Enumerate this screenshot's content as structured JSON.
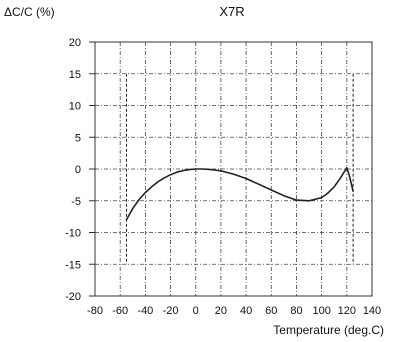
{
  "chart_data": {
    "type": "line",
    "title": "X7R",
    "xlabel": "Temperature (deg.C)",
    "ylabel": "ΔC/C (%)",
    "xlim": [
      -80,
      140
    ],
    "ylim": [
      -20,
      20
    ],
    "x_ticks": [
      -80,
      -60,
      -40,
      -20,
      0,
      20,
      40,
      60,
      80,
      100,
      120,
      140
    ],
    "y_ticks": [
      20,
      15,
      10,
      5,
      0,
      -5,
      -10,
      -15,
      -20
    ],
    "x_tick_labels": [
      "-80",
      "-60",
      "-40",
      "-20",
      "0",
      "20",
      "40",
      "60",
      "80",
      "100",
      "120",
      "140"
    ],
    "y_tick_labels": [
      "20",
      "15",
      "10",
      "5",
      "0",
      "-5",
      "-10",
      "-15",
      "-20"
    ],
    "grid": true,
    "limit_lines_x": [
      -55,
      125
    ],
    "limit_lines_y_range": [
      -15,
      15
    ],
    "colors": {
      "curve": "#222222",
      "grid": "#444444",
      "text": "#111111"
    },
    "series": [
      {
        "x": [
          -55,
          -50,
          -45,
          -40,
          -35,
          -30,
          -25,
          -20,
          -15,
          -10,
          -5,
          0,
          5,
          10,
          15,
          20,
          30,
          40,
          50,
          60,
          70,
          80,
          90,
          100,
          105,
          110,
          115,
          120,
          122,
          125
        ],
        "y": [
          -8,
          -6.2,
          -4.8,
          -3.7,
          -2.8,
          -2.0,
          -1.4,
          -0.9,
          -0.5,
          -0.25,
          -0.1,
          0,
          0,
          -0.05,
          -0.15,
          -0.3,
          -0.8,
          -1.5,
          -2.4,
          -3.3,
          -4.2,
          -4.9,
          -5.0,
          -4.5,
          -3.8,
          -2.8,
          -1.4,
          0.2,
          -1.0,
          -3.5
        ]
      }
    ]
  }
}
